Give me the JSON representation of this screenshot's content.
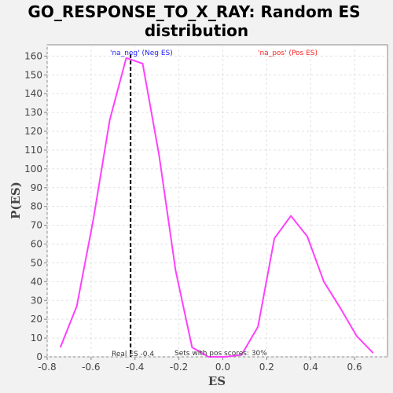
{
  "chart_data": {
    "type": "line",
    "title_line1": "GO_RESPONSE_TO_X_RAY: Random ES",
    "title_line2": "distribution",
    "xlabel": "ES",
    "ylabel": "P(ES)",
    "xlim": [
      -0.8,
      0.75
    ],
    "ylim": [
      0,
      166
    ],
    "x_ticks": [
      -0.8,
      -0.6,
      -0.4,
      -0.2,
      0.0,
      0.2,
      0.4,
      0.6
    ],
    "x_tick_labels": [
      "-0.8",
      "-0.6",
      "-0.4",
      "-0.2",
      "0.0",
      "0.2",
      "0.4",
      "0.6"
    ],
    "y_ticks": [
      0,
      10,
      20,
      30,
      40,
      50,
      60,
      70,
      80,
      90,
      100,
      110,
      120,
      130,
      140,
      150,
      160
    ],
    "y_tick_labels": [
      "0",
      "10",
      "20",
      "30",
      "40",
      "50",
      "60",
      "70",
      "80",
      "90",
      "100",
      "110",
      "120",
      "130",
      "140",
      "150",
      "160"
    ],
    "grid": true,
    "series": [
      {
        "color": "#ff40ff",
        "x": [
          -0.74,
          -0.665,
          -0.59,
          -0.515,
          -0.44,
          -0.365,
          -0.29,
          -0.215,
          -0.14,
          -0.065,
          0.01,
          0.085,
          0.16,
          0.235,
          0.31,
          0.385,
          0.46,
          0.535,
          0.61,
          0.685
        ],
        "y": [
          5,
          27,
          73,
          126,
          159,
          156,
          107,
          46,
          5,
          0,
          0,
          1,
          16,
          63,
          75,
          64,
          40,
          26,
          11,
          2
        ]
      }
    ],
    "real_es_line": {
      "x": -0.42,
      "color": "#000000"
    },
    "annotations": {
      "neg_label": "'na_neg' (Neg ES)",
      "neg_color": "#2020ff",
      "pos_label": "'na_pos' (Pos ES)",
      "pos_color": "#ff2020",
      "real_es_label": "Real ES -0.4",
      "pos_scores_label": "Sets with pos scores: 30%"
    }
  }
}
